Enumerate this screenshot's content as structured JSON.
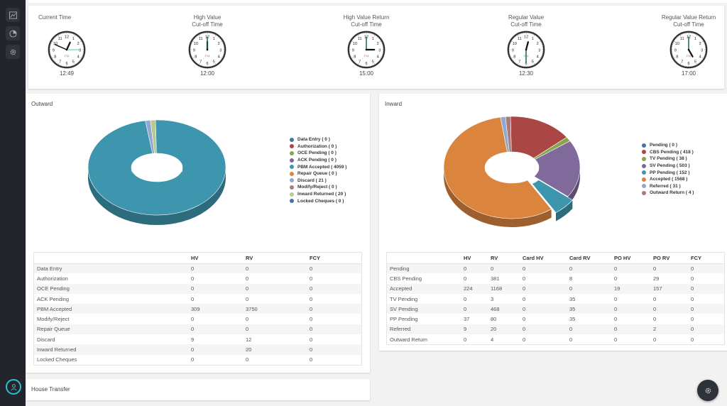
{
  "rail": {
    "icons": [
      "chart-line-icon",
      "pie-chart-icon",
      "gear-icon",
      "user-icon"
    ]
  },
  "clocks": [
    {
      "label": "Current Time",
      "time": "12:49"
    },
    {
      "label": "High Value\nCut-off Time",
      "time": "12:00",
      "pm": "PM"
    },
    {
      "label": "High Value Return\nCut-off Time",
      "time": "15:00",
      "pm": "PM"
    },
    {
      "label": "Regular Value\nCut-off Time",
      "time": "12:30",
      "pm": "PM"
    },
    {
      "label": "Regular Value Return\nCut-off Time",
      "time": "17:00",
      "pm": "PM"
    }
  ],
  "clock_current_pm": "PM",
  "outward": {
    "title": "Outward",
    "columns": [
      "",
      "HV",
      "RV",
      "FCY"
    ],
    "rows": [
      [
        "Data Entry",
        "0",
        "0",
        "0"
      ],
      [
        "Authorization",
        "0",
        "0",
        "0"
      ],
      [
        "OCE Pending",
        "0",
        "0",
        "0"
      ],
      [
        "ACK Pending",
        "0",
        "0",
        "0"
      ],
      [
        "PBM Accepted",
        "309",
        "3750",
        "0"
      ],
      [
        "Modify/Reject",
        "0",
        "0",
        "0"
      ],
      [
        "Repair Queue",
        "0",
        "0",
        "0"
      ],
      [
        "Discard",
        "9",
        "12",
        "0"
      ],
      [
        "Inward Returned",
        "0",
        "20",
        "0"
      ],
      [
        "Locked Cheques",
        "0",
        "0",
        "0"
      ]
    ]
  },
  "inward": {
    "title": "Inward",
    "columns": [
      "",
      "HV",
      "RV",
      "Card HV",
      "Card RV",
      "PO HV",
      "PO RV",
      "FCY"
    ],
    "rows": [
      [
        "Pending",
        "0",
        "0",
        "0",
        "0",
        "0",
        "0",
        "0"
      ],
      [
        "CBS Pending",
        "0",
        "381",
        "0",
        "8",
        "0",
        "29",
        "0"
      ],
      [
        "Accepted",
        "224",
        "1168",
        "0",
        "0",
        "19",
        "157",
        "0"
      ],
      [
        "TV Pending",
        "0",
        "3",
        "0",
        "35",
        "0",
        "0",
        "0"
      ],
      [
        "SV Pending",
        "0",
        "468",
        "0",
        "35",
        "0",
        "0",
        "0"
      ],
      [
        "PP Pending",
        "37",
        "80",
        "0",
        "35",
        "0",
        "0",
        "0"
      ],
      [
        "Referred",
        "9",
        "20",
        "0",
        "0",
        "0",
        "2",
        "0"
      ],
      [
        "Outward Return",
        "0",
        "4",
        "0",
        "0",
        "0",
        "0",
        "0"
      ]
    ]
  },
  "house_transfer": {
    "title": "House Transfer"
  },
  "chart_data": [
    {
      "type": "pie",
      "series": [
        {
          "values": [
            0,
            0,
            0,
            0,
            4059,
            0,
            21,
            0,
            20,
            0
          ]
        }
      ],
      "categories": [
        "Data Entry",
        "Authorization",
        "OCE Pending",
        "ACK Pending",
        "PBM Accepted",
        "Repair Queue",
        "Discard",
        "Modify/Reject",
        "Inward Returned",
        "Locked Cheques"
      ],
      "legend": [
        "Data Entry ( 0 )",
        "Authorization ( 0 )",
        "OCE Pending ( 0 )",
        "ACK Pending ( 0 )",
        "PBM Accepted ( 4059 )",
        "Repair Queue ( 0 )",
        "Discard ( 21 )",
        "Modify/Reject ( 0 )",
        "Inward Returned ( 20 )",
        "Locked Cheques ( 0 )"
      ],
      "colors": [
        "#4572a7",
        "#aa4643",
        "#89a54e",
        "#80699b",
        "#3d96ae",
        "#db843d",
        "#92a8cd",
        "#a47d7c",
        "#b5ca92",
        "#4572a7"
      ],
      "legend_position": "right",
      "donut": true
    },
    {
      "type": "pie",
      "series": [
        {
          "values": [
            0,
            418,
            38,
            503,
            152,
            1568,
            31,
            4
          ]
        }
      ],
      "categories": [
        "Pending",
        "CBS Pending",
        "TV Pending",
        "SV Pending",
        "PP Pending",
        "Accepted",
        "Referred",
        "Outward Return"
      ],
      "legend": [
        "Pending ( 0 )",
        "CBS Pending ( 418 )",
        "TV Pending ( 38 )",
        "SV Pending ( 503 )",
        "PP Pending ( 152 )",
        "Accepted ( 1568 )",
        "Referred ( 31 )",
        "Outward Return ( 4 )"
      ],
      "colors": [
        "#4572a7",
        "#aa4643",
        "#89a54e",
        "#80699b",
        "#3d96ae",
        "#db843d",
        "#92a8cd",
        "#a47d7c"
      ],
      "legend_position": "right",
      "donut": true,
      "exploded": "PP Pending"
    }
  ]
}
